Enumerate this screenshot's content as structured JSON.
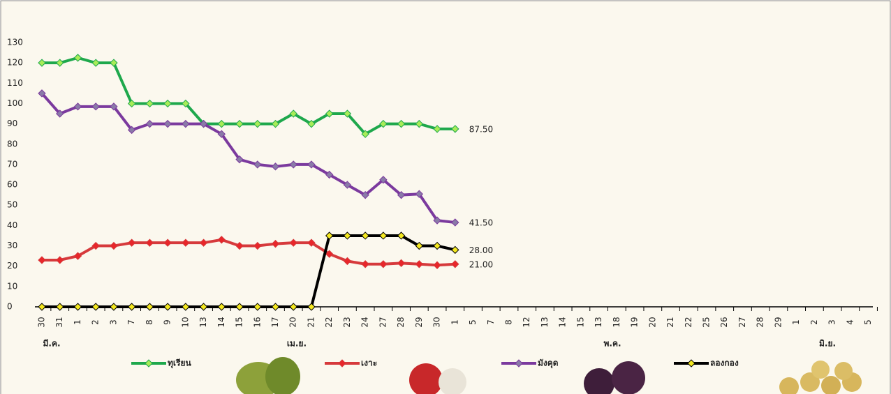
{
  "chart_data": {
    "type": "line",
    "categories": [
      "30",
      "31",
      "1",
      "2",
      "3",
      "7",
      "8",
      "9",
      "10",
      "13",
      "14",
      "15",
      "16",
      "17",
      "20",
      "21",
      "22",
      "23",
      "24",
      "27",
      "28",
      "29",
      "30",
      "1",
      "5",
      "7",
      "8",
      "12",
      "13",
      "14",
      "15",
      "13",
      "18",
      "19",
      "20",
      "21",
      "22",
      "25",
      "26",
      "27",
      "28",
      "29",
      "1",
      "2",
      "3",
      "4",
      "5"
    ],
    "month_labels": [
      "มี.ค.",
      "เม.ย.",
      "พ.ค.",
      "มิ.ย."
    ],
    "ylim": [
      0,
      130
    ],
    "yticks": [
      0,
      10,
      20,
      30,
      40,
      50,
      60,
      70,
      80,
      90,
      100,
      110,
      120,
      130
    ],
    "series": [
      {
        "name": "ทุเรียน",
        "color": "#1ea84c",
        "marker_color": "#a8ec58",
        "label_color": "#2bb45a",
        "values": [
          120,
          120,
          122.5,
          120,
          120,
          100,
          100,
          100,
          100,
          90,
          90,
          90,
          90,
          90,
          95,
          90,
          95,
          95,
          85,
          90,
          90,
          90,
          87.5,
          87.5,
          null,
          null,
          null,
          null,
          null,
          null,
          null,
          null,
          null,
          null,
          null,
          null,
          null,
          null,
          null,
          null,
          null,
          null,
          null,
          null,
          null,
          null,
          null
        ],
        "value_labels": [
          null,
          null,
          null,
          null,
          null,
          null,
          null,
          null,
          null,
          null,
          null,
          null,
          null,
          null,
          null,
          null,
          null,
          null,
          null,
          null,
          null,
          null,
          null,
          "87.50",
          null,
          null,
          null,
          null,
          null,
          null,
          null,
          null,
          null,
          null,
          null,
          null,
          null,
          null,
          null,
          null,
          null,
          null,
          null,
          null,
          null,
          null,
          null
        ]
      },
      {
        "name": "เงาะ",
        "color": "#d63a3c",
        "marker_color": "#e8262a",
        "label_color": "#e8262a",
        "values": [
          23,
          23,
          25,
          30,
          30,
          31.5,
          31.5,
          31.5,
          31.5,
          31.5,
          33,
          30,
          30,
          31,
          31.5,
          31.5,
          26,
          22.5,
          21,
          21,
          21.5,
          21,
          20.5,
          21,
          null,
          null,
          null,
          null,
          null,
          null,
          null,
          null,
          null,
          null,
          null,
          null,
          null,
          null,
          null,
          null,
          null,
          null,
          null,
          null,
          null,
          null,
          null
        ],
        "value_labels": [
          null,
          null,
          null,
          null,
          null,
          null,
          null,
          null,
          null,
          null,
          null,
          null,
          null,
          null,
          null,
          null,
          null,
          null,
          null,
          null,
          null,
          null,
          null,
          "21.00",
          null,
          null,
          null,
          null,
          null,
          null,
          null,
          null,
          null,
          null,
          null,
          null,
          null,
          null,
          null,
          null,
          null,
          null,
          null,
          null,
          null,
          null,
          null
        ]
      },
      {
        "name": "มังคุด",
        "color": "#7b3a9e",
        "marker_color": "#8a7aa8",
        "label_color": "#1f3a7a",
        "values": [
          105,
          95,
          98.5,
          98.5,
          98.5,
          87,
          90,
          90,
          90,
          90,
          85,
          72.5,
          70,
          69,
          70,
          70,
          65,
          60,
          55,
          62.5,
          55,
          55.5,
          42.5,
          41.5,
          null,
          null,
          null,
          null,
          null,
          null,
          null,
          null,
          null,
          null,
          null,
          null,
          null,
          null,
          null,
          null,
          null,
          null,
          null,
          null,
          null,
          null,
          null
        ],
        "value_labels": [
          null,
          null,
          null,
          null,
          null,
          null,
          null,
          null,
          null,
          null,
          null,
          null,
          null,
          null,
          null,
          null,
          null,
          null,
          null,
          null,
          null,
          null,
          null,
          "41.50",
          null,
          null,
          null,
          null,
          null,
          null,
          null,
          null,
          null,
          null,
          null,
          null,
          null,
          null,
          null,
          null,
          null,
          null,
          null,
          null,
          null,
          null,
          null
        ]
      },
      {
        "name": "ลองกอง",
        "color": "#000000",
        "marker_color": "#f4e820",
        "label_color": "#000000",
        "values": [
          0,
          0,
          0,
          0,
          0,
          0,
          0,
          0,
          0,
          0,
          0,
          0,
          0,
          0,
          0,
          0,
          35,
          35,
          35,
          35,
          35,
          30,
          30,
          28,
          null,
          null,
          null,
          null,
          null,
          null,
          null,
          null,
          null,
          null,
          null,
          null,
          null,
          null,
          null,
          null,
          null,
          null,
          null,
          null,
          null,
          null,
          null
        ],
        "value_labels": [
          null,
          null,
          null,
          null,
          null,
          null,
          null,
          null,
          null,
          null,
          null,
          null,
          null,
          null,
          null,
          null,
          null,
          null,
          null,
          null,
          null,
          null,
          null,
          "28.00",
          null,
          null,
          null,
          null,
          null,
          null,
          null,
          null,
          null,
          null,
          null,
          null,
          null,
          null,
          null,
          null,
          null,
          null,
          null,
          null,
          null,
          null,
          null
        ]
      }
    ]
  }
}
